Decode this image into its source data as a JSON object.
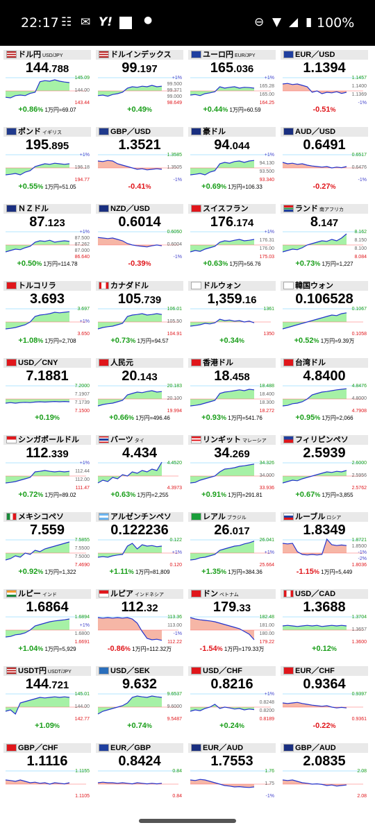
{
  "status": {
    "time": "22:17",
    "battery": "100%",
    "notif_icons": [
      "news-icon",
      "mail-icon",
      "yahoo-icon",
      "square-icon",
      "dot-icon"
    ],
    "right_icons": [
      "dnd-icon",
      "wifi-icon",
      "signal-icon",
      "battery-icon"
    ]
  },
  "colors": {
    "up": "#1a9e1a",
    "down": "#e0161b",
    "line": "#2233cc",
    "fill_up": "#90ee90",
    "fill_down": "#f4a490"
  },
  "tiles": [
    {
      "name": "ドル円",
      "sub": "USD/JPY",
      "flag": "us",
      "price_a": "144",
      "price_b": ".788",
      "chg": "+0.86",
      "extra": "1万円=69.07",
      "dir": "up",
      "ticks": [
        "145.09",
        "144.00",
        "143.44"
      ],
      "series": [
        0.22,
        0.2,
        0.28,
        0.3,
        0.28,
        0.36,
        0.4,
        0.78,
        0.82,
        0.8,
        0.85,
        0.8,
        0.77,
        0.75
      ]
    },
    {
      "name": "ドルインデックス",
      "sub": "",
      "flag": "us",
      "price_a": "99",
      "price_b": ".197",
      "chg": "+0.49",
      "extra": "",
      "dir": "up",
      "ticks": [
        "+1%",
        "99.500",
        "99.371",
        "99.000",
        "98.649"
      ],
      "series": [
        0.28,
        0.3,
        0.26,
        0.32,
        0.35,
        0.4,
        0.55,
        0.6,
        0.58,
        0.62,
        0.6,
        0.65,
        0.6,
        0.62
      ]
    },
    {
      "name": "ユーロ円",
      "sub": "EUR/JPY",
      "flag": "eu",
      "price_a": "165",
      "price_b": ".036",
      "chg": "+0.44",
      "extra": "1万円=60.59",
      "dir": "up",
      "ticks": [
        "+1%",
        "165.28",
        "165.00",
        "164.25"
      ],
      "series": [
        0.3,
        0.32,
        0.28,
        0.35,
        0.38,
        0.42,
        0.6,
        0.55,
        0.58,
        0.6,
        0.55,
        0.58,
        0.57,
        0.55
      ]
    },
    {
      "name": "EUR／USD",
      "sub": "",
      "flag": "eu",
      "price_a": "1.1394",
      "price_b": "",
      "chg": "-0.51",
      "extra": "",
      "dir": "down",
      "ticks": [
        "1.1457",
        "1.1400",
        "1.1369",
        "-1%"
      ],
      "series": [
        0.7,
        0.72,
        0.68,
        0.7,
        0.65,
        0.6,
        0.4,
        0.45,
        0.35,
        0.4,
        0.38,
        0.42,
        0.36,
        0.4
      ]
    },
    {
      "name": "ポンド",
      "sub": "イギリス",
      "flag": "gb",
      "price_a": "195",
      "price_b": ".895",
      "chg": "+0.55",
      "extra": "1万円=51.05",
      "dir": "up",
      "ticks": [
        "+1%",
        "196.18",
        "194.77"
      ],
      "series": [
        0.2,
        0.22,
        0.25,
        0.2,
        0.3,
        0.35,
        0.5,
        0.55,
        0.6,
        0.58,
        0.62,
        0.6,
        0.58,
        0.6
      ]
    },
    {
      "name": "GBP／USD",
      "sub": "",
      "flag": "gb",
      "price_a": "1.3521",
      "price_b": "",
      "chg": "-0.41",
      "extra": "",
      "dir": "down",
      "ticks": [
        "1.3585",
        "1.3505",
        "-1%"
      ],
      "series": [
        0.7,
        0.68,
        0.72,
        0.7,
        0.6,
        0.55,
        0.5,
        0.45,
        0.4,
        0.42,
        0.38,
        0.4,
        0.42,
        0.4
      ]
    },
    {
      "name": "豪ドル",
      "sub": "",
      "flag": "au",
      "price_a": "94",
      "price_b": ".044",
      "chg": "+0.69",
      "extra": "1万円=106.33",
      "dir": "up",
      "ticks": [
        "+1%",
        "94.130",
        "93.500",
        "93.340"
      ],
      "series": [
        0.2,
        0.22,
        0.25,
        0.2,
        0.3,
        0.35,
        0.6,
        0.65,
        0.62,
        0.68,
        0.7,
        0.65,
        0.7,
        0.72
      ]
    },
    {
      "name": "AUD／USD",
      "sub": "",
      "flag": "au",
      "price_a": "0.6491",
      "price_b": "",
      "chg": "-0.27",
      "extra": "",
      "dir": "down",
      "ticks": [
        "0.6517",
        "0.6476",
        "-1%"
      ],
      "series": [
        0.65,
        0.6,
        0.62,
        0.58,
        0.6,
        0.55,
        0.52,
        0.5,
        0.48,
        0.5,
        0.45,
        0.48,
        0.46,
        0.5
      ]
    },
    {
      "name": "ＮＺドル",
      "sub": "",
      "flag": "nz",
      "price_a": "87",
      "price_b": ".123",
      "chg": "+0.50",
      "extra": "1万円=114.78",
      "dir": "up",
      "ticks": [
        "+1%",
        "87.500",
        "87.262",
        "87.000",
        "86.640"
      ],
      "series": [
        0.2,
        0.25,
        0.3,
        0.28,
        0.35,
        0.4,
        0.55,
        0.6,
        0.58,
        0.62,
        0.55,
        0.58,
        0.6,
        0.58
      ]
    },
    {
      "name": "NZD／USD",
      "sub": "",
      "flag": "nz",
      "price_a": "0.6014",
      "price_b": "",
      "chg": "-0.39",
      "extra": "",
      "dir": "down",
      "ticks": [
        "0.6050",
        "0.6004",
        "-1%"
      ],
      "series": [
        0.72,
        0.7,
        0.68,
        0.7,
        0.65,
        0.6,
        0.5,
        0.45,
        0.42,
        0.4,
        0.38,
        0.42,
        0.45,
        0.42
      ]
    },
    {
      "name": "スイスフラン",
      "sub": "",
      "flag": "ch",
      "price_a": "176",
      "price_b": ".174",
      "chg": "+0.63",
      "extra": "1万円=56.76",
      "dir": "up",
      "ticks": [
        "+1%",
        "176.31",
        "176.00",
        "175.03"
      ],
      "series": [
        0.2,
        0.25,
        0.22,
        0.3,
        0.35,
        0.4,
        0.55,
        0.6,
        0.58,
        0.62,
        0.65,
        0.6,
        0.62,
        0.65
      ]
    },
    {
      "name": "ランド",
      "sub": "南アフリカ",
      "flag": "za",
      "price_a": "8",
      "price_b": ".147",
      "chg": "+0.73",
      "extra": "1万円=1,227",
      "dir": "up",
      "ticks": [
        "8.162",
        "8.150",
        "8.100",
        "8.084"
      ],
      "series": [
        0.2,
        0.25,
        0.3,
        0.28,
        0.35,
        0.45,
        0.5,
        0.55,
        0.6,
        0.58,
        0.65,
        0.6,
        0.7,
        0.85
      ]
    },
    {
      "name": "トルコリラ",
      "sub": "",
      "flag": "tr",
      "price_a": "3.693",
      "price_b": "",
      "chg": "+1.08",
      "extra": "1万円=2,708",
      "dir": "up",
      "ticks": [
        "3.697",
        "+1%",
        "3.650"
      ],
      "series": [
        0.2,
        0.22,
        0.25,
        0.3,
        0.35,
        0.45,
        0.65,
        0.7,
        0.72,
        0.75,
        0.8,
        0.78,
        0.8,
        0.82
      ]
    },
    {
      "name": "カナダドル",
      "sub": "",
      "flag": "ca",
      "price_a": "105",
      "price_b": ".739",
      "chg": "+0.73",
      "extra": "1万円=94.57",
      "dir": "up",
      "ticks": [
        "106.01",
        "105.50",
        "104.91"
      ],
      "series": [
        0.2,
        0.25,
        0.28,
        0.3,
        0.35,
        0.4,
        0.65,
        0.7,
        0.72,
        0.75,
        0.7,
        0.72,
        0.75,
        0.72
      ]
    },
    {
      "name": "ドルウォン",
      "sub": "",
      "flag": "kr",
      "price_a": "1,359",
      "price_b": ".16",
      "chg": "+0.34",
      "extra": "",
      "dir": "up",
      "ticks": [
        "1361",
        "1350"
      ],
      "series": [
        0.3,
        0.32,
        0.35,
        0.4,
        0.38,
        0.42,
        0.55,
        0.5,
        0.52,
        0.48,
        0.5,
        0.45,
        0.48,
        0.42
      ]
    },
    {
      "name": "韓国ウォン",
      "sub": "",
      "flag": "kr",
      "price_a": "0.106528",
      "price_b": "",
      "chg": "+0.52",
      "extra": "1万円=9.39万",
      "dir": "up",
      "ticks": [
        "0.1067",
        "0.1058"
      ],
      "series": [
        0.2,
        0.25,
        0.3,
        0.35,
        0.4,
        0.45,
        0.5,
        0.55,
        0.6,
        0.65,
        0.7,
        0.68,
        0.75,
        0.78
      ]
    },
    {
      "name": "USD／CNY",
      "sub": "",
      "flag": "cn",
      "price_a": "7.1881",
      "price_b": "",
      "chg": "+0.19",
      "extra": "",
      "dir": "up",
      "ticks": [
        "7.2000",
        "7.1907",
        "7.1739",
        "7.1500"
      ],
      "series": [
        0.3,
        0.32,
        0.3,
        0.32,
        0.33,
        0.32,
        0.34,
        0.35,
        0.34,
        0.35,
        0.36,
        0.35,
        0.36,
        0.35
      ]
    },
    {
      "name": "人民元",
      "sub": "",
      "flag": "cn",
      "price_a": "20",
      "price_b": ".143",
      "chg": "+0.66",
      "extra": "1万円=496.46",
      "dir": "up",
      "ticks": [
        "20.183",
        "20.100",
        "19.994"
      ],
      "series": [
        0.2,
        0.25,
        0.28,
        0.3,
        0.35,
        0.4,
        0.6,
        0.65,
        0.7,
        0.68,
        0.72,
        0.75,
        0.7,
        0.72
      ]
    },
    {
      "name": "香港ドル",
      "sub": "",
      "flag": "hk",
      "price_a": "18",
      "price_b": ".458",
      "chg": "+0.93",
      "extra": "1万円=541.76",
      "dir": "up",
      "ticks": [
        "18.488",
        "18.400",
        "18.300",
        "18.272"
      ],
      "series": [
        0.2,
        0.22,
        0.25,
        0.3,
        0.35,
        0.4,
        0.65,
        0.7,
        0.72,
        0.75,
        0.78,
        0.75,
        0.8,
        0.78
      ]
    },
    {
      "name": "台湾ドル",
      "sub": "",
      "flag": "tw",
      "price_a": "4.8400",
      "price_b": "",
      "chg": "+0.95",
      "extra": "1万円=2,066",
      "dir": "up",
      "ticks": [
        "4.8476",
        "4.8000",
        "4.7908"
      ],
      "series": [
        0.2,
        0.22,
        0.28,
        0.3,
        0.35,
        0.45,
        0.6,
        0.65,
        0.7,
        0.72,
        0.75,
        0.78,
        0.8,
        0.82
      ]
    },
    {
      "name": "シンガポールドル",
      "sub": "",
      "flag": "sg",
      "price_a": "112",
      "price_b": ".339",
      "chg": "+0.72",
      "extra": "1万円=89.02",
      "dir": "up",
      "ticks": [
        "+1%",
        "112.44",
        "112.00",
        "111.47"
      ],
      "series": [
        0.2,
        0.22,
        0.25,
        0.3,
        0.35,
        0.4,
        0.6,
        0.62,
        0.65,
        0.62,
        0.6,
        0.62,
        0.6,
        0.62
      ]
    },
    {
      "name": "バーツ",
      "sub": "タイ",
      "flag": "th",
      "price_a": "4.434",
      "price_b": "",
      "chg": "+0.63",
      "extra": "1万円=2,255",
      "dir": "up",
      "ticks": [
        "4.4520",
        "4.3973"
      ],
      "series": [
        0.2,
        0.3,
        0.25,
        0.4,
        0.35,
        0.5,
        0.45,
        0.6,
        0.55,
        0.65,
        0.6,
        0.7,
        0.65,
        0.95
      ]
    },
    {
      "name": "リンギット",
      "sub": "マレーシア",
      "flag": "my",
      "price_a": "34",
      "price_b": ".269",
      "chg": "+0.91",
      "extra": "1万円=291.81",
      "dir": "up",
      "ticks": [
        "34.326",
        "34.000",
        "33.936"
      ],
      "series": [
        0.2,
        0.22,
        0.3,
        0.35,
        0.4,
        0.45,
        0.6,
        0.7,
        0.72,
        0.75,
        0.8,
        0.82,
        0.85,
        0.88
      ]
    },
    {
      "name": "フィリピンペソ",
      "sub": "",
      "flag": "ph",
      "price_a": "2.5939",
      "price_b": "",
      "chg": "+0.67",
      "extra": "1万円=3,855",
      "dir": "up",
      "ticks": [
        "2.6000",
        "2.5956",
        "2.5762"
      ],
      "series": [
        0.2,
        0.25,
        0.3,
        0.28,
        0.35,
        0.4,
        0.45,
        0.5,
        0.55,
        0.6,
        0.58,
        0.62,
        0.6,
        0.65
      ]
    },
    {
      "name": "メキシコペソ",
      "sub": "",
      "flag": "mx",
      "price_a": "7.559",
      "price_b": "",
      "chg": "+0.92",
      "extra": "1万円=1,322",
      "dir": "up",
      "ticks": [
        "7.5855",
        "7.5500",
        "7.5000",
        "7.4690"
      ],
      "series": [
        0.2,
        0.25,
        0.35,
        0.3,
        0.45,
        0.4,
        0.55,
        0.5,
        0.6,
        0.65,
        0.7,
        0.75,
        0.8,
        0.85
      ]
    },
    {
      "name": "アルゼンチンペソ",
      "sub": "",
      "flag": "ar",
      "price_a": "0.122236",
      "price_b": "",
      "chg": "+1.11",
      "extra": "1万円=81,809",
      "dir": "up",
      "ticks": [
        "0.122",
        "+1%",
        "0.120"
      ],
      "series": [
        0.3,
        0.32,
        0.3,
        0.35,
        0.38,
        0.4,
        0.7,
        0.8,
        0.6,
        0.75,
        0.7,
        0.72,
        0.68,
        0.7
      ]
    },
    {
      "name": "レアル",
      "sub": "ブラジル",
      "flag": "br",
      "price_a": "26",
      "price_b": ".017",
      "chg": "+1.35",
      "extra": "1万円=384.36",
      "dir": "up",
      "ticks": [
        "26.041",
        "+1%",
        "25.664"
      ],
      "series": [
        0.2,
        0.22,
        0.28,
        0.3,
        0.35,
        0.4,
        0.55,
        0.6,
        0.65,
        0.7,
        0.72,
        0.78,
        0.82,
        0.88
      ]
    },
    {
      "name": "ルーブル",
      "sub": "ロシア",
      "flag": "ru",
      "price_a": "1.8349",
      "price_b": "",
      "chg": "-1.15",
      "extra": "1万円=5,449",
      "dir": "down",
      "ticks": [
        "1.8721",
        "1.8500",
        "-1%",
        "-2%",
        "1.8036"
      ],
      "series": [
        0.8,
        0.78,
        0.8,
        0.5,
        0.4,
        0.38,
        0.4,
        0.38,
        0.4,
        0.95,
        0.75,
        0.72,
        0.74,
        0.72
      ]
    },
    {
      "name": "ルピー",
      "sub": "インド",
      "flag": "in",
      "price_a": "1.6864",
      "price_b": "",
      "chg": "+1.04",
      "extra": "1万円=5,929",
      "dir": "up",
      "ticks": [
        "1.6894",
        "+1%",
        "1.6800",
        "1.6691"
      ],
      "series": [
        0.2,
        0.22,
        0.28,
        0.3,
        0.35,
        0.45,
        0.6,
        0.65,
        0.7,
        0.75,
        0.78,
        0.8,
        0.82,
        0.85
      ]
    },
    {
      "name": "ルピア",
      "sub": "インドネシア",
      "flag": "id",
      "price_a": "112",
      "price_b": ".32",
      "chg": "-0.86",
      "extra": "1万円=112.32万",
      "dir": "down",
      "ticks": [
        "113.36",
        "113.00",
        "-1%",
        "112.22"
      ],
      "series": [
        0.9,
        0.88,
        0.9,
        0.88,
        0.9,
        0.88,
        0.9,
        0.85,
        0.7,
        0.4,
        0.15,
        0.1,
        0.12,
        0.08
      ]
    },
    {
      "name": "ドン",
      "sub": "ベトナム",
      "flag": "vn",
      "price_a": "179",
      "price_b": ".33",
      "chg": "-1.54",
      "extra": "1万円=179.33万",
      "dir": "down",
      "ticks": [
        "182.48",
        "181.00",
        "180.00",
        "179.22"
      ],
      "series": [
        0.9,
        0.85,
        0.82,
        0.8,
        0.78,
        0.75,
        0.7,
        0.65,
        0.6,
        0.55,
        0.5,
        0.4,
        0.3,
        0.1
      ]
    },
    {
      "name": "USD／CAD",
      "sub": "",
      "flag": "ca",
      "price_a": "1.3688",
      "price_b": "",
      "chg": "+0.12",
      "extra": "",
      "dir": "up",
      "ticks": [
        "1.3704",
        "1.3657",
        "1.3600"
      ],
      "series": [
        0.6,
        0.62,
        0.6,
        0.58,
        0.6,
        0.62,
        0.6,
        0.62,
        0.58,
        0.6,
        0.62,
        0.6,
        0.62,
        0.6
      ]
    },
    {
      "name": "USDT円",
      "sub": "USDT/JPY",
      "flag": "us",
      "price_a": "144",
      "price_b": ".721",
      "chg": "+1.09",
      "extra": "",
      "dir": "up",
      "ticks": [
        "145.01",
        "144.00",
        "142.77"
      ],
      "series": [
        0.3,
        0.35,
        0.2,
        0.6,
        0.65,
        0.7,
        0.75,
        0.8,
        0.78,
        0.8,
        0.82,
        0.8,
        0.82,
        0.8
      ]
    },
    {
      "name": "USD／SEK",
      "sub": "",
      "flag": "se",
      "price_a": "9.632",
      "price_b": "",
      "chg": "+0.74",
      "extra": "",
      "dir": "up",
      "ticks": [
        "9.6537",
        "9.6000",
        "9.5487"
      ],
      "series": [
        0.2,
        0.3,
        0.35,
        0.4,
        0.45,
        0.5,
        0.6,
        0.8,
        0.85,
        0.82,
        0.8,
        0.85,
        0.82,
        0.8
      ]
    },
    {
      "name": "USD／CHF",
      "sub": "",
      "flag": "ch",
      "price_a": "0.8216",
      "price_b": "",
      "chg": "+0.24",
      "extra": "",
      "dir": "up",
      "ticks": [
        "+1%",
        "0.8248",
        "0.8200",
        "0.8189"
      ],
      "series": [
        0.3,
        0.35,
        0.32,
        0.4,
        0.45,
        0.55,
        0.4,
        0.45,
        0.42,
        0.38,
        0.4,
        0.35,
        0.38,
        0.36
      ]
    },
    {
      "name": "EUR／CHF",
      "sub": "",
      "flag": "ch",
      "price_a": "0.9364",
      "price_b": "",
      "chg": "-0.22",
      "extra": "",
      "dir": "down",
      "ticks": [
        "0.9397",
        "0.9361"
      ],
      "series": [
        0.6,
        0.58,
        0.6,
        0.62,
        0.58,
        0.55,
        0.52,
        0.5,
        0.48,
        0.5,
        0.45,
        0.42,
        0.44,
        0.42
      ]
    },
    {
      "name": "GBP／CHF",
      "sub": "",
      "flag": "ch",
      "price_a": "1.1116",
      "price_b": "",
      "chg": "",
      "extra": "",
      "dir": "down",
      "ticks": [
        "1.1155",
        "1.1105"
      ],
      "series": [
        0.6,
        0.58,
        0.55,
        0.6,
        0.55,
        0.5,
        0.52,
        0.48,
        0.5,
        0.45,
        0.5,
        0.48,
        0.46,
        0.5
      ]
    },
    {
      "name": "EUR／GBP",
      "sub": "",
      "flag": "eu",
      "price_a": "0.8424",
      "price_b": "",
      "chg": "",
      "extra": "",
      "dir": "down",
      "ticks": [
        "0.84",
        "0.84"
      ],
      "series": [
        0.5,
        0.52,
        0.5,
        0.5,
        0.48,
        0.5,
        0.48,
        0.46,
        0.5,
        0.48,
        0.46,
        0.48,
        0.46,
        0.48
      ]
    },
    {
      "name": "EUR／AUD",
      "sub": "",
      "flag": "au",
      "price_a": "1.7553",
      "price_b": "",
      "chg": "",
      "extra": "",
      "dir": "down",
      "ticks": [
        "1.76",
        "1.75",
        "-1%"
      ],
      "series": [
        0.6,
        0.58,
        0.62,
        0.6,
        0.55,
        0.5,
        0.45,
        0.4,
        0.38,
        0.35,
        0.36,
        0.34,
        0.33,
        0.35
      ]
    },
    {
      "name": "GBP／AUD",
      "sub": "",
      "flag": "au",
      "price_a": "2.0835",
      "price_b": "",
      "chg": "",
      "extra": "",
      "dir": "down",
      "ticks": [
        "2.08",
        "2.08"
      ],
      "series": [
        0.6,
        0.58,
        0.6,
        0.55,
        0.5,
        0.48,
        0.45,
        0.46,
        0.44,
        0.4,
        0.42,
        0.38,
        0.4,
        0.42
      ]
    }
  ]
}
